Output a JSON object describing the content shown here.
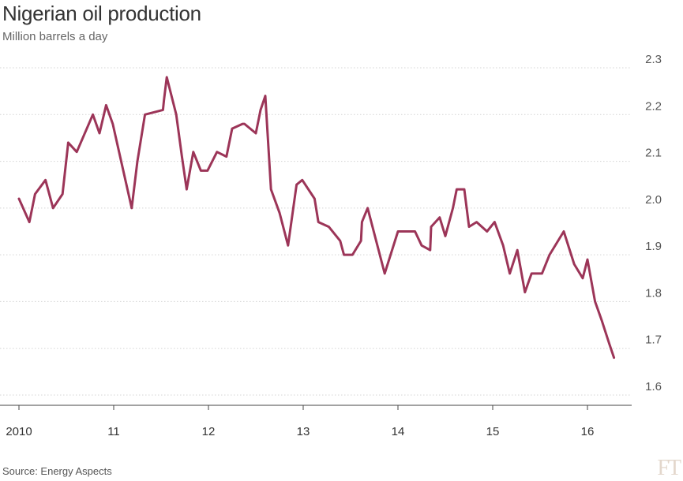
{
  "header": {
    "title": "Nigerian oil production",
    "subtitle": "Million barrels a day"
  },
  "footer": {
    "source": "Source: Energy Aspects",
    "logo": "FT"
  },
  "colors": {
    "line": "#9c3558",
    "grid": "#d4d4d4",
    "background": "#ffffff"
  },
  "chart_data": {
    "type": "line",
    "title": "Nigerian oil production",
    "subtitle": "Million barrels a day",
    "xlabel": "",
    "ylabel": "",
    "ylim": [
      1.6,
      2.3
    ],
    "xlim": [
      2010,
      2016.5
    ],
    "yticks": [
      1.6,
      1.7,
      1.8,
      1.9,
      2.0,
      2.1,
      2.2,
      2.3
    ],
    "ytick_labels": [
      "1.6",
      "1.7",
      "1.8",
      "1.9",
      "2.0",
      "2.1",
      "2.2",
      "2.3"
    ],
    "xticks": [
      2010,
      2011,
      2012,
      2013,
      2014,
      2015,
      2016
    ],
    "xtick_labels": [
      "2010",
      "11",
      "12",
      "13",
      "14",
      "15",
      "16"
    ],
    "grid": "horizontal",
    "y_axis_position": "right",
    "series": [
      {
        "name": "",
        "x": [
          2010.0,
          2010.11,
          2010.17,
          2010.28,
          2010.36,
          2010.46,
          2010.52,
          2010.61,
          2010.78,
          2010.85,
          2010.92,
          2010.99,
          2011.09,
          2011.19,
          2011.25,
          2011.33,
          2011.52,
          2011.53,
          2011.56,
          2011.66,
          2011.72,
          2011.77,
          2011.84,
          2011.92,
          2011.99,
          2012.09,
          2012.19,
          2012.25,
          2012.36,
          2012.38,
          2012.5,
          2012.55,
          2012.6,
          2012.66,
          2012.75,
          2012.84,
          2012.93,
          2012.99,
          2013.12,
          2013.16,
          2013.27,
          2013.39,
          2013.43,
          2013.52,
          2013.61,
          2013.62,
          2013.68,
          2013.86,
          2014.0,
          2014.18,
          2014.25,
          2014.34,
          2014.35,
          2014.44,
          2014.5,
          2014.58,
          2014.62,
          2014.7,
          2014.75,
          2014.83,
          2014.94,
          2015.02,
          2015.11,
          2015.18,
          2015.26,
          2015.34,
          2015.41,
          2015.52,
          2015.6,
          2015.75,
          2015.86,
          2015.95,
          2016.0,
          2016.08,
          2016.15,
          2016.23,
          2016.28
        ],
        "values": [
          2.02,
          1.97,
          2.03,
          2.06,
          2.0,
          2.03,
          2.14,
          2.12,
          2.2,
          2.16,
          2.22,
          2.18,
          2.09,
          2.0,
          2.1,
          2.2,
          2.21,
          2.23,
          2.28,
          2.2,
          2.11,
          2.04,
          2.12,
          2.08,
          2.08,
          2.12,
          2.11,
          2.17,
          2.18,
          2.18,
          2.16,
          2.21,
          2.24,
          2.04,
          1.99,
          1.92,
          2.05,
          2.06,
          2.02,
          1.97,
          1.96,
          1.93,
          1.9,
          1.9,
          1.93,
          1.97,
          2.0,
          1.86,
          1.95,
          1.95,
          1.92,
          1.91,
          1.96,
          1.98,
          1.94,
          2.0,
          2.04,
          2.04,
          1.96,
          1.97,
          1.95,
          1.97,
          1.92,
          1.86,
          1.91,
          1.82,
          1.86,
          1.86,
          1.9,
          1.95,
          1.88,
          1.85,
          1.89,
          1.8,
          1.76,
          1.71,
          1.68
        ]
      }
    ]
  }
}
